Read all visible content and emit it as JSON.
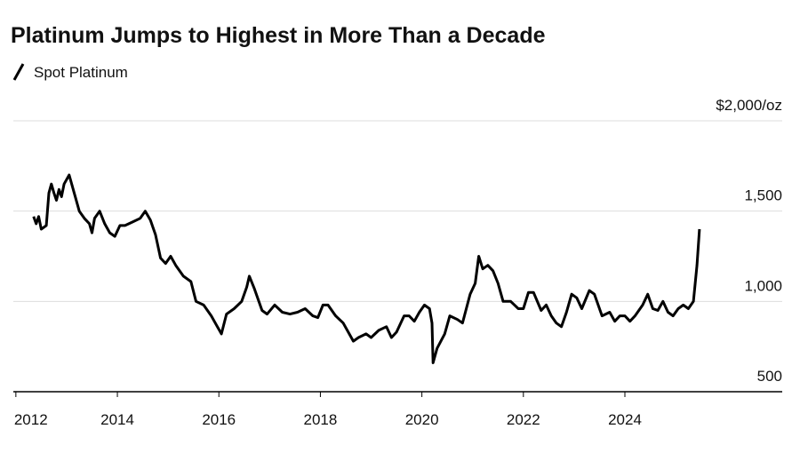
{
  "chart_data": {
    "type": "line",
    "title": "Platinum Jumps to Highest in More Than a Decade",
    "x": [
      2012.35,
      2012.4,
      2012.45,
      2012.5,
      2012.6,
      2012.65,
      2012.7,
      2012.75,
      2012.8,
      2012.85,
      2012.9,
      2012.95,
      2013.05,
      2013.15,
      2013.25,
      2013.35,
      2013.45,
      2013.5,
      2013.55,
      2013.65,
      2013.75,
      2013.85,
      2013.95,
      2014.05,
      2014.15,
      2014.3,
      2014.45,
      2014.55,
      2014.65,
      2014.75,
      2014.85,
      2014.95,
      2015.05,
      2015.15,
      2015.3,
      2015.45,
      2015.55,
      2015.7,
      2015.85,
      2015.95,
      2016.05,
      2016.15,
      2016.3,
      2016.45,
      2016.55,
      2016.6,
      2016.7,
      2016.85,
      2016.95,
      2017.1,
      2017.25,
      2017.4,
      2017.55,
      2017.7,
      2017.85,
      2017.95,
      2018.05,
      2018.15,
      2018.3,
      2018.45,
      2018.55,
      2018.65,
      2018.75,
      2018.9,
      2019.0,
      2019.15,
      2019.3,
      2019.4,
      2019.5,
      2019.65,
      2019.75,
      2019.85,
      2019.95,
      2020.05,
      2020.15,
      2020.2,
      2020.22,
      2020.3,
      2020.45,
      2020.55,
      2020.7,
      2020.8,
      2020.95,
      2021.05,
      2021.12,
      2021.2,
      2021.3,
      2021.4,
      2021.5,
      2021.6,
      2021.75,
      2021.9,
      2022.0,
      2022.1,
      2022.2,
      2022.35,
      2022.45,
      2022.55,
      2022.65,
      2022.75,
      2022.85,
      2022.95,
      2023.05,
      2023.15,
      2023.3,
      2023.4,
      2023.55,
      2023.7,
      2023.8,
      2023.9,
      2024.0,
      2024.1,
      2024.2,
      2024.35,
      2024.45,
      2024.55,
      2024.65,
      2024.75,
      2024.85,
      2024.95,
      2025.05,
      2025.15,
      2025.25,
      2025.35,
      2025.42,
      2025.47
    ],
    "series": [
      {
        "name": "Spot Platinum",
        "color": "#000000",
        "values": [
          1470,
          1430,
          1470,
          1400,
          1420,
          1600,
          1650,
          1600,
          1560,
          1620,
          1580,
          1650,
          1700,
          1600,
          1500,
          1460,
          1430,
          1380,
          1460,
          1500,
          1430,
          1380,
          1360,
          1420,
          1420,
          1440,
          1460,
          1500,
          1450,
          1370,
          1240,
          1210,
          1250,
          1200,
          1140,
          1110,
          1000,
          980,
          920,
          870,
          820,
          930,
          960,
          1000,
          1080,
          1140,
          1070,
          950,
          930,
          980,
          940,
          930,
          940,
          960,
          920,
          910,
          980,
          980,
          920,
          880,
          830,
          780,
          800,
          820,
          800,
          840,
          860,
          800,
          830,
          920,
          920,
          890,
          940,
          980,
          960,
          880,
          660,
          740,
          820,
          920,
          900,
          880,
          1040,
          1100,
          1250,
          1180,
          1200,
          1170,
          1100,
          1000,
          1000,
          960,
          960,
          1050,
          1050,
          950,
          980,
          920,
          880,
          860,
          940,
          1040,
          1020,
          960,
          1060,
          1040,
          920,
          940,
          890,
          920,
          920,
          890,
          920,
          980,
          1040,
          960,
          950,
          1000,
          940,
          920,
          960,
          980,
          960,
          1000,
          1200,
          1400
        ]
      }
    ],
    "xlim": [
      2011.95,
      2027.1
    ],
    "xticks": [
      2012,
      2014,
      2016,
      2018,
      2020,
      2022,
      2024
    ],
    "ylim": [
      500,
      2000
    ],
    "yticks": [
      {
        "value": 500,
        "label": "500"
      },
      {
        "value": 1000,
        "label": "1,000"
      },
      {
        "value": 1500,
        "label": "1,500"
      },
      {
        "value": 2000,
        "label": "$2,000/oz"
      }
    ],
    "grid": true
  }
}
